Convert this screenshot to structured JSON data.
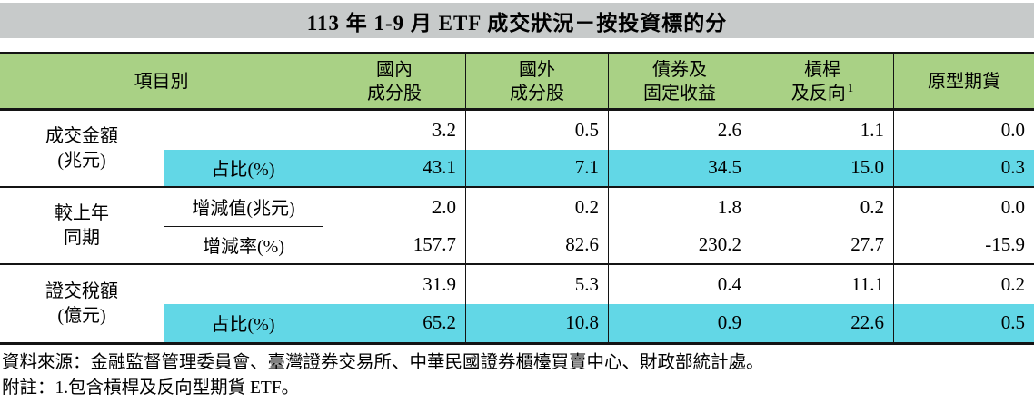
{
  "title": "113 年 1-9 月 ETF 成交狀況－按投資標的分",
  "colors": {
    "title_bg": "#c7caca",
    "header_bg": "#a9d185",
    "highlight_bg": "#62d7e6",
    "border": "#141414"
  },
  "table": {
    "corner_label": "項目別",
    "columns": [
      {
        "line1": "國內",
        "line2": "成分股",
        "sup": ""
      },
      {
        "line1": "國外",
        "line2": "成分股",
        "sup": ""
      },
      {
        "line1": "債券及",
        "line2": "固定收益",
        "sup": ""
      },
      {
        "line1": "槓桿",
        "line2": "及反向",
        "sup": "1"
      },
      {
        "line1": "原型期貨",
        "line2": "",
        "sup": ""
      }
    ],
    "row_groups": [
      {
        "label_line1": "成交金額",
        "label_line2": "(兆元)",
        "subrows": [
          {
            "sublabel": "",
            "highlight": false,
            "values": [
              "3.2",
              "0.5",
              "2.6",
              "1.1",
              "0.0"
            ]
          },
          {
            "sublabel": "占比(%)",
            "highlight": true,
            "values": [
              "43.1",
              "7.1",
              "34.5",
              "15.0",
              "0.3"
            ]
          }
        ]
      },
      {
        "label_line1": "較上年",
        "label_line2": "同期",
        "subrows": [
          {
            "sublabel": "增減值(兆元)",
            "highlight": false,
            "values": [
              "2.0",
              "0.2",
              "1.8",
              "0.2",
              "0.0"
            ]
          },
          {
            "sublabel": "增減率(%)",
            "highlight": false,
            "values": [
              "157.7",
              "82.6",
              "230.2",
              "27.7",
              "-15.9"
            ]
          }
        ]
      },
      {
        "label_line1": "證交稅額",
        "label_line2": "(億元)",
        "subrows": [
          {
            "sublabel": "",
            "highlight": false,
            "values": [
              "31.9",
              "5.3",
              "0.4",
              "11.1",
              "0.2"
            ]
          },
          {
            "sublabel": "占比(%)",
            "highlight": true,
            "values": [
              "65.2",
              "10.8",
              "0.9",
              "22.6",
              "0.5"
            ]
          }
        ]
      }
    ]
  },
  "footer": {
    "source": "資料來源：金融監督管理委員會、臺灣證券交易所、中華民國證券櫃檯買賣中心、財政部統計處。",
    "note": "附註：1.包含槓桿及反向型期貨 ETF。"
  }
}
